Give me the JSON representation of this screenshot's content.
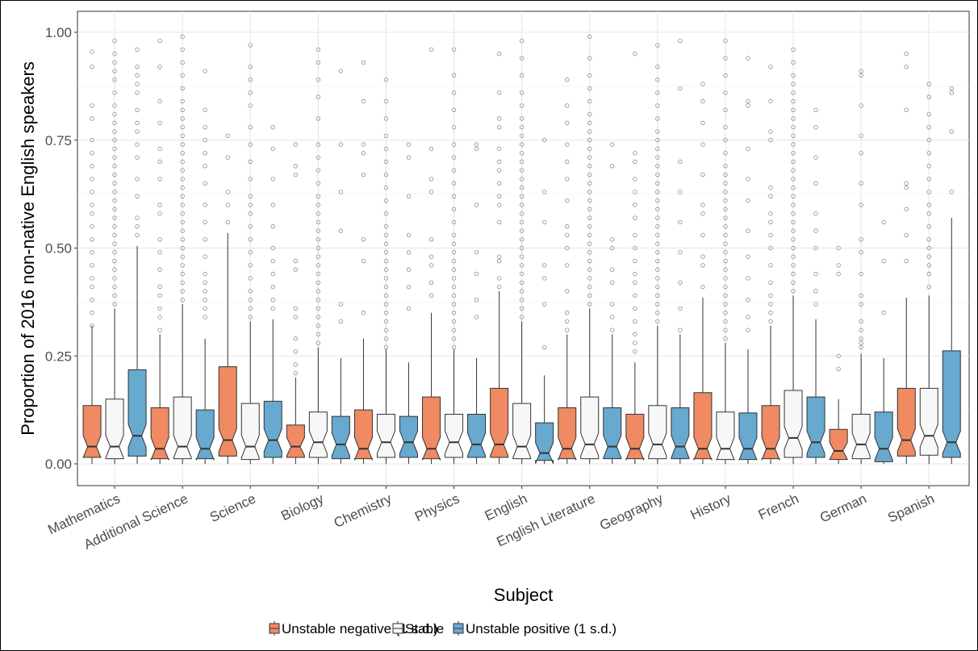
{
  "chart_data": {
    "type": "boxplot",
    "title": "",
    "xlabel": "Subject",
    "ylabel": "Proportion of 2016 non-native English speakers",
    "ylim": [
      -0.04,
      1.04
    ],
    "y_ticks": [
      "0.00",
      "0.25",
      "0.50",
      "0.75",
      "1.00"
    ],
    "y_tick_values": [
      0,
      0.25,
      0.5,
      0.75,
      1.0
    ],
    "grid": true,
    "legend_position": "bottom",
    "categories": [
      "Mathematics",
      "Additional Science",
      "Science",
      "Biology",
      "Chemistry",
      "Physics",
      "English",
      "English Literature",
      "Geography",
      "History",
      "French",
      "German",
      "Spanish"
    ],
    "series": [
      {
        "name": "Unstable negative (1 s.d.)",
        "color": "#EF8A62",
        "boxes": [
          {
            "whisker_low": 0.0,
            "q1": 0.015,
            "median": 0.04,
            "q3": 0.135,
            "whisker_high": 0.32
          },
          {
            "whisker_low": 0.0,
            "q1": 0.012,
            "median": 0.035,
            "q3": 0.13,
            "whisker_high": 0.3
          },
          {
            "whisker_low": 0.0,
            "q1": 0.018,
            "median": 0.055,
            "q3": 0.225,
            "whisker_high": 0.535
          },
          {
            "whisker_low": 0.0,
            "q1": 0.015,
            "median": 0.04,
            "q3": 0.09,
            "whisker_high": 0.2
          },
          {
            "whisker_low": 0.0,
            "q1": 0.012,
            "median": 0.035,
            "q3": 0.125,
            "whisker_high": 0.29
          },
          {
            "whisker_low": 0.0,
            "q1": 0.012,
            "median": 0.035,
            "q3": 0.155,
            "whisker_high": 0.35
          },
          {
            "whisker_low": 0.0,
            "q1": 0.015,
            "median": 0.045,
            "q3": 0.175,
            "whisker_high": 0.4
          },
          {
            "whisker_low": 0.0,
            "q1": 0.012,
            "median": 0.035,
            "q3": 0.13,
            "whisker_high": 0.3
          },
          {
            "whisker_low": 0.0,
            "q1": 0.012,
            "median": 0.035,
            "q3": 0.115,
            "whisker_high": 0.235
          },
          {
            "whisker_low": 0.0,
            "q1": 0.012,
            "median": 0.035,
            "q3": 0.165,
            "whisker_high": 0.385
          },
          {
            "whisker_low": 0.0,
            "q1": 0.012,
            "median": 0.035,
            "q3": 0.135,
            "whisker_high": 0.32
          },
          {
            "whisker_low": 0.0,
            "q1": 0.01,
            "median": 0.03,
            "q3": 0.08,
            "whisker_high": 0.15
          },
          {
            "whisker_low": 0.0,
            "q1": 0.018,
            "median": 0.055,
            "q3": 0.175,
            "whisker_high": 0.385
          }
        ],
        "outliers": [
          [
            0.32,
            0.35,
            0.38,
            0.41,
            0.43,
            0.46,
            0.49,
            0.52,
            0.55,
            0.58,
            0.6,
            0.63,
            0.66,
            0.69,
            0.72,
            0.75,
            0.8,
            0.83,
            0.92,
            0.955
          ],
          [
            0.31,
            0.34,
            0.36,
            0.39,
            0.41,
            0.45,
            0.49,
            0.52,
            0.58,
            0.6,
            0.66,
            0.7,
            0.73,
            0.79,
            0.84,
            0.92,
            0.98
          ],
          [
            0.56,
            0.6,
            0.63,
            0.71,
            0.76
          ],
          [
            0.21,
            0.23,
            0.26,
            0.29,
            0.34,
            0.36,
            0.45,
            0.47,
            0.67,
            0.69,
            0.74
          ],
          [
            0.35,
            0.47,
            0.52,
            0.67,
            0.72,
            0.74,
            0.84,
            0.93
          ],
          [
            0.39,
            0.42,
            0.46,
            0.48,
            0.52,
            0.63,
            0.66,
            0.73,
            0.96
          ],
          [
            0.41,
            0.43,
            0.47,
            0.48,
            0.56,
            0.6,
            0.62,
            0.65,
            0.68,
            0.7,
            0.73,
            0.78,
            0.8,
            0.86,
            0.95
          ],
          [
            0.31,
            0.33,
            0.35,
            0.4,
            0.46,
            0.5,
            0.53,
            0.55,
            0.61,
            0.66,
            0.7,
            0.74,
            0.79,
            0.83,
            0.89
          ],
          [
            0.26,
            0.28,
            0.3,
            0.33,
            0.36,
            0.39,
            0.42,
            0.44,
            0.47,
            0.5,
            0.53,
            0.57,
            0.6,
            0.63,
            0.66,
            0.7,
            0.72,
            0.95
          ],
          [
            0.41,
            0.46,
            0.48,
            0.53,
            0.58,
            0.6,
            0.67,
            0.74,
            0.79,
            0.84,
            0.88
          ],
          [
            0.33,
            0.35,
            0.37,
            0.39,
            0.42,
            0.46,
            0.5,
            0.53,
            0.56,
            0.58,
            0.62,
            0.64,
            0.75,
            0.77,
            0.84,
            0.92
          ],
          [
            0.22,
            0.25,
            0.44,
            0.46,
            0.5
          ],
          [
            0.47,
            0.53,
            0.59,
            0.64,
            0.65,
            0.82,
            0.92,
            0.95
          ]
        ]
      },
      {
        "name": "Stable",
        "color": "#F7F7F7",
        "boxes": [
          {
            "whisker_low": 0.0,
            "q1": 0.012,
            "median": 0.04,
            "q3": 0.15,
            "whisker_high": 0.36
          },
          {
            "whisker_low": 0.0,
            "q1": 0.012,
            "median": 0.04,
            "q3": 0.155,
            "whisker_high": 0.37
          },
          {
            "whisker_low": 0.0,
            "q1": 0.01,
            "median": 0.04,
            "q3": 0.14,
            "whisker_high": 0.33
          },
          {
            "whisker_low": 0.0,
            "q1": 0.015,
            "median": 0.05,
            "q3": 0.12,
            "whisker_high": 0.27
          },
          {
            "whisker_low": 0.0,
            "q1": 0.015,
            "median": 0.05,
            "q3": 0.115,
            "whisker_high": 0.265
          },
          {
            "whisker_low": 0.0,
            "q1": 0.015,
            "median": 0.05,
            "q3": 0.115,
            "whisker_high": 0.265
          },
          {
            "whisker_low": 0.0,
            "q1": 0.012,
            "median": 0.04,
            "q3": 0.14,
            "whisker_high": 0.33
          },
          {
            "whisker_low": 0.0,
            "q1": 0.012,
            "median": 0.045,
            "q3": 0.155,
            "whisker_high": 0.36
          },
          {
            "whisker_low": 0.0,
            "q1": 0.012,
            "median": 0.045,
            "q3": 0.135,
            "whisker_high": 0.32
          },
          {
            "whisker_low": 0.0,
            "q1": 0.01,
            "median": 0.035,
            "q3": 0.12,
            "whisker_high": 0.28
          },
          {
            "whisker_low": 0.0,
            "q1": 0.015,
            "median": 0.06,
            "q3": 0.17,
            "whisker_high": 0.39
          },
          {
            "whisker_low": 0.0,
            "q1": 0.012,
            "median": 0.045,
            "q3": 0.115,
            "whisker_high": 0.255
          },
          {
            "whisker_low": 0.0,
            "q1": 0.02,
            "median": 0.065,
            "q3": 0.175,
            "whisker_high": 0.39
          }
        ],
        "outliers": [
          [
            0.37,
            0.39,
            0.41,
            0.43,
            0.45,
            0.47,
            0.49,
            0.51,
            0.53,
            0.55,
            0.57,
            0.59,
            0.61,
            0.63,
            0.65,
            0.67,
            0.69,
            0.71,
            0.73,
            0.75,
            0.77,
            0.79,
            0.81,
            0.83,
            0.86,
            0.89,
            0.91,
            0.93,
            0.95,
            0.98
          ],
          [
            0.38,
            0.4,
            0.42,
            0.44,
            0.46,
            0.48,
            0.5,
            0.52,
            0.54,
            0.56,
            0.58,
            0.6,
            0.62,
            0.64,
            0.66,
            0.68,
            0.7,
            0.72,
            0.74,
            0.76,
            0.78,
            0.8,
            0.82,
            0.84,
            0.87,
            0.9,
            0.93,
            0.96,
            0.99
          ],
          [
            0.34,
            0.36,
            0.38,
            0.4,
            0.43,
            0.46,
            0.49,
            0.52,
            0.55,
            0.58,
            0.6,
            0.62,
            0.66,
            0.7,
            0.74,
            0.78,
            0.83,
            0.86,
            0.89,
            0.92,
            0.97
          ],
          [
            0.28,
            0.3,
            0.32,
            0.34,
            0.36,
            0.38,
            0.4,
            0.42,
            0.44,
            0.46,
            0.48,
            0.5,
            0.52,
            0.54,
            0.56,
            0.58,
            0.6,
            0.62,
            0.65,
            0.68,
            0.71,
            0.74,
            0.8,
            0.85,
            0.89,
            0.93,
            0.96
          ],
          [
            0.27,
            0.29,
            0.31,
            0.33,
            0.35,
            0.37,
            0.39,
            0.41,
            0.43,
            0.45,
            0.47,
            0.49,
            0.51,
            0.53,
            0.55,
            0.58,
            0.61,
            0.64,
            0.67,
            0.7,
            0.73,
            0.76,
            0.8,
            0.84,
            0.89
          ],
          [
            0.27,
            0.29,
            0.31,
            0.33,
            0.35,
            0.37,
            0.39,
            0.41,
            0.43,
            0.45,
            0.47,
            0.49,
            0.51,
            0.53,
            0.56,
            0.59,
            0.62,
            0.65,
            0.68,
            0.71,
            0.74,
            0.78,
            0.82,
            0.86,
            0.9,
            0.96
          ],
          [
            0.34,
            0.36,
            0.38,
            0.4,
            0.42,
            0.44,
            0.46,
            0.48,
            0.5,
            0.52,
            0.54,
            0.56,
            0.58,
            0.6,
            0.62,
            0.64,
            0.66,
            0.68,
            0.7,
            0.72,
            0.74,
            0.76,
            0.78,
            0.8,
            0.83,
            0.86,
            0.9,
            0.94,
            0.98
          ],
          [
            0.37,
            0.39,
            0.41,
            0.43,
            0.45,
            0.47,
            0.49,
            0.51,
            0.53,
            0.55,
            0.57,
            0.59,
            0.61,
            0.63,
            0.65,
            0.67,
            0.69,
            0.71,
            0.73,
            0.75,
            0.77,
            0.79,
            0.81,
            0.84,
            0.87,
            0.9,
            0.94,
            0.99
          ],
          [
            0.33,
            0.35,
            0.37,
            0.39,
            0.41,
            0.43,
            0.45,
            0.47,
            0.49,
            0.51,
            0.53,
            0.55,
            0.57,
            0.59,
            0.61,
            0.63,
            0.65,
            0.67,
            0.69,
            0.71,
            0.73,
            0.75,
            0.77,
            0.8,
            0.83,
            0.86,
            0.89,
            0.92,
            0.97
          ],
          [
            0.29,
            0.31,
            0.33,
            0.35,
            0.37,
            0.39,
            0.41,
            0.43,
            0.45,
            0.47,
            0.49,
            0.51,
            0.53,
            0.55,
            0.57,
            0.59,
            0.61,
            0.63,
            0.65,
            0.67,
            0.69,
            0.72,
            0.75,
            0.78,
            0.82,
            0.86,
            0.9,
            0.94,
            0.98
          ],
          [
            0.4,
            0.42,
            0.44,
            0.46,
            0.48,
            0.5,
            0.52,
            0.54,
            0.56,
            0.58,
            0.6,
            0.62,
            0.64,
            0.66,
            0.68,
            0.7,
            0.72,
            0.74,
            0.76,
            0.78,
            0.8,
            0.82,
            0.84,
            0.86,
            0.88,
            0.9,
            0.93,
            0.96
          ],
          [
            0.27,
            0.28,
            0.29,
            0.31,
            0.33,
            0.37,
            0.39,
            0.44,
            0.49,
            0.52,
            0.6,
            0.65,
            0.72,
            0.76,
            0.83,
            0.9,
            0.91
          ],
          [
            0.41,
            0.44,
            0.46,
            0.48,
            0.5,
            0.52,
            0.55,
            0.58,
            0.6,
            0.63,
            0.66,
            0.69,
            0.72,
            0.75,
            0.78,
            0.81,
            0.85,
            0.88
          ]
        ]
      },
      {
        "name": "Unstable positive (1 s.d.)",
        "color": "#67A9CF",
        "boxes": [
          {
            "whisker_low": 0.0,
            "q1": 0.018,
            "median": 0.065,
            "q3": 0.218,
            "whisker_high": 0.505
          },
          {
            "whisker_low": 0.0,
            "q1": 0.012,
            "median": 0.035,
            "q3": 0.125,
            "whisker_high": 0.29
          },
          {
            "whisker_low": 0.0,
            "q1": 0.015,
            "median": 0.055,
            "q3": 0.145,
            "whisker_high": 0.335
          },
          {
            "whisker_low": 0.0,
            "q1": 0.012,
            "median": 0.045,
            "q3": 0.11,
            "whisker_high": 0.245
          },
          {
            "whisker_low": 0.0,
            "q1": 0.015,
            "median": 0.05,
            "q3": 0.11,
            "whisker_high": 0.235
          },
          {
            "whisker_low": 0.0,
            "q1": 0.015,
            "median": 0.045,
            "q3": 0.115,
            "whisker_high": 0.245
          },
          {
            "whisker_low": 0.0,
            "q1": 0.008,
            "median": 0.025,
            "q3": 0.095,
            "whisker_high": 0.205
          },
          {
            "whisker_low": 0.0,
            "q1": 0.012,
            "median": 0.04,
            "q3": 0.13,
            "whisker_high": 0.3
          },
          {
            "whisker_low": 0.0,
            "q1": 0.012,
            "median": 0.04,
            "q3": 0.13,
            "whisker_high": 0.3
          },
          {
            "whisker_low": 0.0,
            "q1": 0.01,
            "median": 0.035,
            "q3": 0.118,
            "whisker_high": 0.265
          },
          {
            "whisker_low": 0.0,
            "q1": 0.015,
            "median": 0.05,
            "q3": 0.155,
            "whisker_high": 0.335
          },
          {
            "whisker_low": 0.0,
            "q1": 0.005,
            "median": 0.035,
            "q3": 0.12,
            "whisker_high": 0.245
          },
          {
            "whisker_low": 0.0,
            "q1": 0.015,
            "median": 0.05,
            "q3": 0.262,
            "whisker_high": 0.57
          }
        ],
        "outliers": [
          [
            0.53,
            0.55,
            0.57,
            0.62,
            0.66,
            0.71,
            0.74,
            0.77,
            0.79,
            0.82,
            0.86,
            0.88,
            0.9,
            0.92,
            0.96
          ],
          [
            0.34,
            0.36,
            0.38,
            0.4,
            0.42,
            0.44,
            0.48,
            0.52,
            0.56,
            0.6,
            0.65,
            0.69,
            0.72,
            0.75,
            0.78,
            0.82,
            0.91
          ],
          [
            0.36,
            0.38,
            0.41,
            0.44,
            0.47,
            0.5,
            0.55,
            0.6,
            0.66,
            0.73,
            0.78
          ],
          [
            0.33,
            0.37,
            0.54,
            0.63,
            0.74,
            0.91
          ],
          [
            0.36,
            0.41,
            0.45,
            0.49,
            0.53,
            0.62,
            0.71,
            0.74
          ],
          [
            0.34,
            0.38,
            0.44,
            0.49,
            0.6,
            0.73,
            0.74
          ],
          [
            0.27,
            0.37,
            0.43,
            0.46,
            0.56,
            0.63,
            0.75
          ],
          [
            0.31,
            0.34,
            0.37,
            0.42,
            0.45,
            0.5,
            0.52,
            0.69,
            0.74
          ],
          [
            0.31,
            0.36,
            0.42,
            0.49,
            0.56,
            0.63,
            0.7,
            0.87,
            0.98
          ],
          [
            0.31,
            0.34,
            0.38,
            0.43,
            0.48,
            0.54,
            0.61,
            0.66,
            0.73,
            0.83,
            0.84,
            0.94
          ],
          [
            0.37,
            0.4,
            0.44,
            0.5,
            0.54,
            0.58,
            0.65,
            0.71,
            0.78,
            0.82
          ],
          [
            0.35,
            0.47,
            0.56
          ],
          [
            0.63,
            0.77,
            0.86,
            0.87
          ]
        ]
      }
    ]
  }
}
